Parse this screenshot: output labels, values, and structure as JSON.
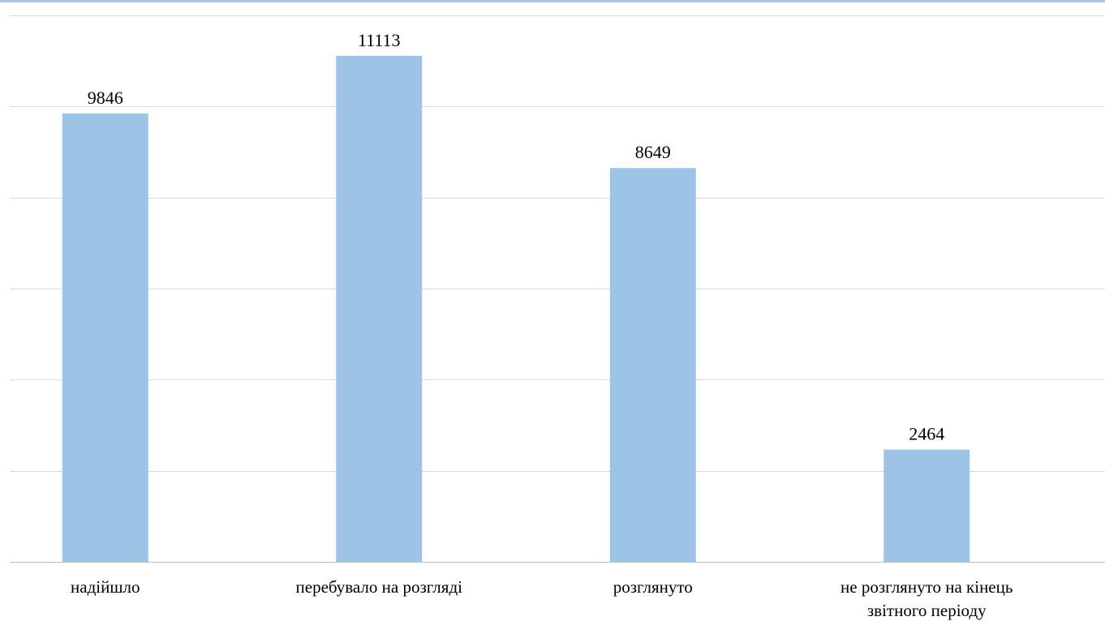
{
  "chart_data": {
    "type": "bar",
    "categories": [
      [
        "надійшло"
      ],
      [
        "перебувало на розгляді"
      ],
      [
        "розглянуто"
      ],
      [
        "не розглянуто на кінець",
        "звітного періоду"
      ]
    ],
    "values": [
      9846,
      11113,
      8649,
      2464
    ],
    "data_labels": [
      "9846",
      "11113",
      "8649",
      "2464"
    ],
    "ylim": [
      0,
      12000
    ],
    "gridlines": [
      0,
      2000,
      4000,
      6000,
      8000,
      10000,
      12000
    ],
    "grid": true,
    "legend": "none",
    "colors": {
      "bar": "#9dc3e6",
      "grid": "#d9d9d9",
      "axis": "#bfbfbf",
      "top_border": "#a9c6e8"
    }
  }
}
